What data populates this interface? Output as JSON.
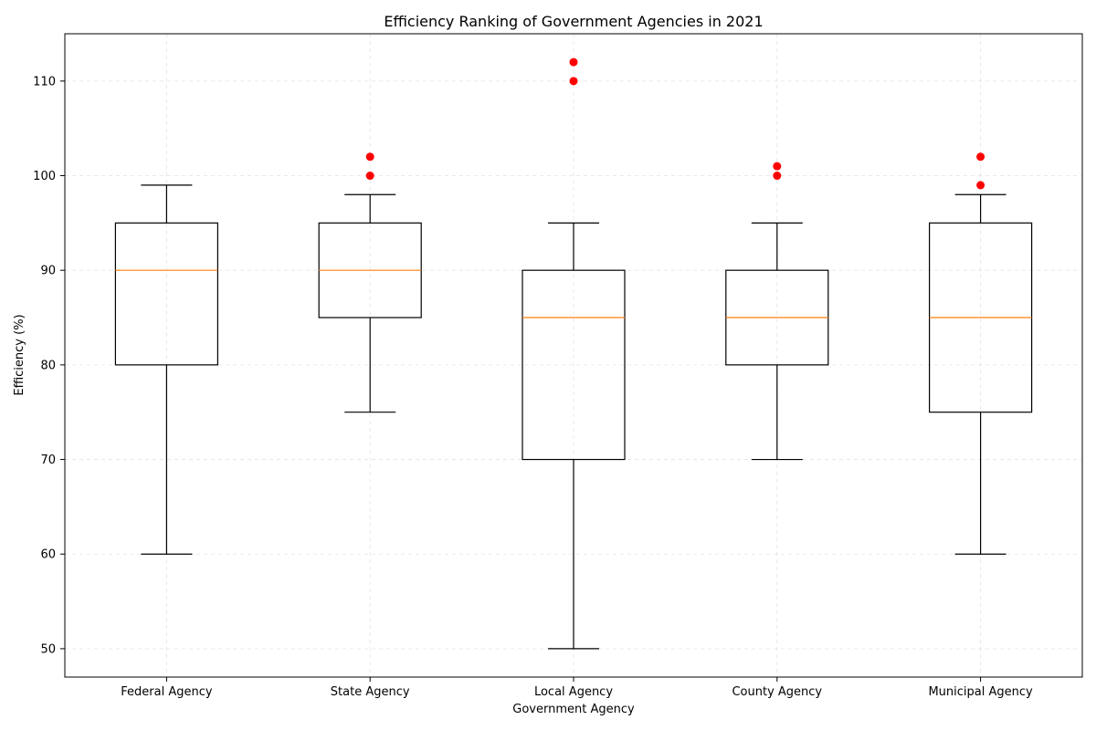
{
  "chart_data": {
    "type": "box",
    "title": "Efficiency Ranking of Government Agencies in 2021",
    "xlabel": "Government Agency",
    "ylabel": "Efficiency (%)",
    "ylim": [
      47,
      115
    ],
    "yticks": [
      50,
      60,
      70,
      80,
      90,
      100,
      110
    ],
    "grid": true,
    "colors": {
      "median": "#ff7f0e",
      "outlier": "#ff0000",
      "box": "#000000"
    },
    "categories": [
      "Federal Agency",
      "State Agency",
      "Local Agency",
      "County Agency",
      "Municipal Agency"
    ],
    "boxes": [
      {
        "name": "Federal Agency",
        "min": 60,
        "q1": 80,
        "median": 90,
        "q3": 95,
        "max": 99,
        "outliers": []
      },
      {
        "name": "State Agency",
        "min": 75,
        "q1": 85,
        "median": 90,
        "q3": 95,
        "max": 98,
        "outliers": [
          100,
          102
        ]
      },
      {
        "name": "Local Agency",
        "min": 50,
        "q1": 70,
        "median": 85,
        "q3": 90,
        "max": 95,
        "outliers": [
          110,
          112
        ]
      },
      {
        "name": "County Agency",
        "min": 70,
        "q1": 80,
        "median": 85,
        "q3": 90,
        "max": 95,
        "outliers": [
          100,
          101
        ]
      },
      {
        "name": "Municipal Agency",
        "min": 60,
        "q1": 75,
        "median": 85,
        "q3": 95,
        "max": 98,
        "outliers": [
          99,
          102
        ]
      }
    ]
  }
}
